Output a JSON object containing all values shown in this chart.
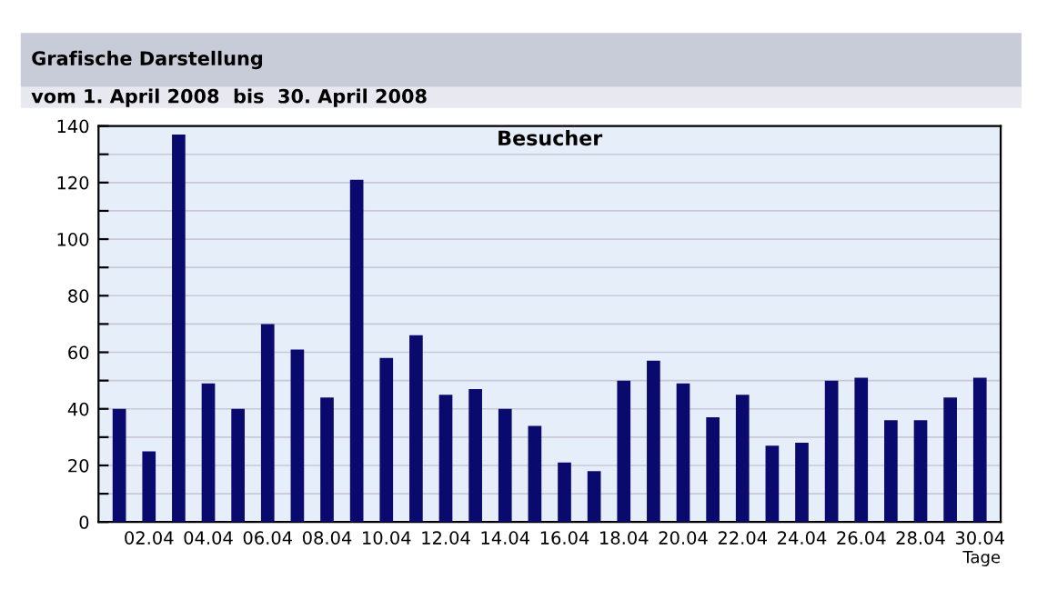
{
  "chart_data": {
    "type": "bar",
    "title": "Grafische Darstellung",
    "subtitle": "vom 1. April 2008  bis  30. April 2008",
    "annotations": [
      "Besucher"
    ],
    "xlabel": "Tage",
    "categories": [
      null,
      "02.04",
      null,
      "04.04",
      null,
      "06.04",
      null,
      "08.04",
      null,
      "10.04",
      null,
      "12.04",
      null,
      "14.04",
      null,
      "16.04",
      null,
      "18.04",
      null,
      "20.04",
      null,
      "22.04",
      null,
      "24.04",
      null,
      "26.04",
      null,
      "28.04",
      null,
      "30.04"
    ],
    "values": [
      40,
      25,
      137,
      49,
      40,
      70,
      61,
      44,
      121,
      58,
      66,
      45,
      47,
      40,
      34,
      21,
      18,
      50,
      57,
      49,
      37,
      45,
      27,
      28,
      50,
      51,
      36,
      36,
      44,
      51
    ],
    "color": "#0a0a6e",
    "ylim": [
      0,
      140
    ],
    "yticks": [
      0,
      {
        "value": 10,
        "label": null
      },
      20,
      {
        "value": 30,
        "label": null
      },
      40,
      {
        "value": 50,
        "label": null
      },
      60,
      {
        "value": 70,
        "label": null
      },
      80,
      {
        "value": 90,
        "label": null
      },
      100,
      {
        "value": 110,
        "label": null
      },
      120,
      {
        "value": 130,
        "label": null
      },
      140
    ],
    "grid": "y"
  }
}
